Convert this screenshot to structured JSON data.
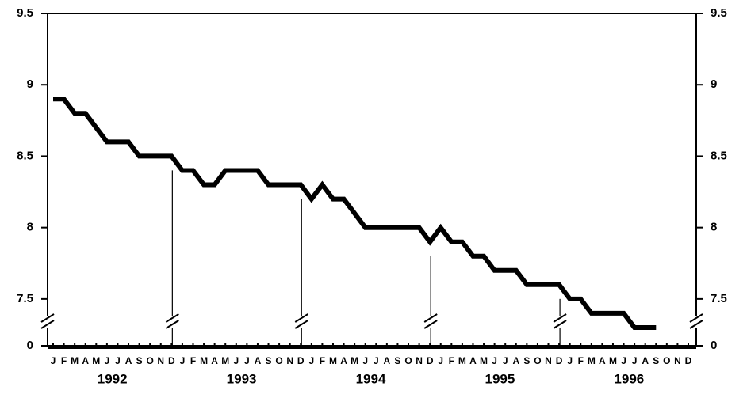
{
  "chart_data": {
    "type": "line",
    "categories": [
      "J",
      "F",
      "M",
      "A",
      "M",
      "J",
      "J",
      "A",
      "S",
      "O",
      "N",
      "D",
      "J",
      "F",
      "M",
      "A",
      "M",
      "J",
      "J",
      "A",
      "S",
      "O",
      "N",
      "D",
      "J",
      "F",
      "M",
      "A",
      "M",
      "J",
      "J",
      "A",
      "S",
      "O",
      "N",
      "D",
      "J",
      "F",
      "M",
      "A",
      "M",
      "J",
      "J",
      "A",
      "S",
      "O",
      "N",
      "D",
      "J",
      "F",
      "M",
      "A",
      "M",
      "J",
      "J",
      "A",
      "S",
      "O",
      "N",
      "D"
    ],
    "years": [
      "1992",
      "1993",
      "1994",
      "1995",
      "1996"
    ],
    "values": [
      8.9,
      8.9,
      8.8,
      8.8,
      8.7,
      8.6,
      8.6,
      8.6,
      8.5,
      8.5,
      8.5,
      8.5,
      8.4,
      8.4,
      8.3,
      8.3,
      8.4,
      8.4,
      8.4,
      8.4,
      8.3,
      8.3,
      8.3,
      8.3,
      8.2,
      8.3,
      8.2,
      8.2,
      8.1,
      8.0,
      8.0,
      8.0,
      8.0,
      8.0,
      8.0,
      7.9,
      8.0,
      7.9,
      7.9,
      7.8,
      7.8,
      7.7,
      7.7,
      7.7,
      7.6,
      7.6,
      7.6,
      7.6,
      7.5,
      7.5,
      7.4,
      7.4,
      7.4,
      7.4,
      7.3,
      7.3,
      7.3,
      null,
      null,
      null
    ],
    "color": "#000000",
    "ylim": [
      0,
      9.5
    ],
    "axis_break": [
      0,
      7.2
    ],
    "yticks": [
      0,
      7.5,
      8.0,
      8.5,
      9.0,
      9.5
    ]
  }
}
